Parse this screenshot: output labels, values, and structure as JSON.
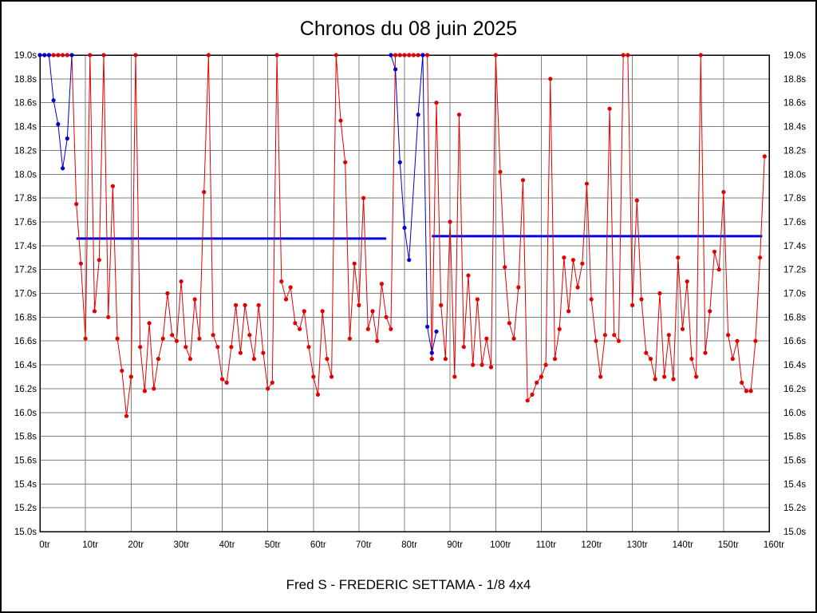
{
  "chart_data": {
    "type": "line",
    "title": "Chronos du 08 juin 2025",
    "subtitle": "Fred S - FREDERIC SETTAMA - 1/8 4x4",
    "x_unit": "tr",
    "y_unit": "s",
    "xlim": [
      0,
      160
    ],
    "ylim": [
      15.0,
      19.0
    ],
    "x_tick_step": 10,
    "y_tick_step": 0.2,
    "grid": true,
    "legend": "none",
    "colors": {
      "grid": "#808080",
      "axis": "#000000",
      "red_series": "#e10000",
      "blue_series": "#0000cd",
      "average_line": "#0000e0",
      "background": "#ffffff"
    },
    "series": [
      {
        "name": "lap-times-red",
        "color": "#e10000",
        "values": [
          19.0,
          19.0,
          19.0,
          19.0,
          19.0,
          19.0,
          19.0,
          19.0,
          17.75,
          17.25,
          16.62,
          19.0,
          16.85,
          17.28,
          19.0,
          16.8,
          17.9,
          16.62,
          16.35,
          15.97,
          16.3,
          19.0,
          16.55,
          16.18,
          16.75,
          16.2,
          16.45,
          16.62,
          17.0,
          16.65,
          16.6,
          17.1,
          16.55,
          16.45,
          16.95,
          16.62,
          17.85,
          19.0,
          16.65,
          16.55,
          16.28,
          16.25,
          16.55,
          16.9,
          16.5,
          16.9,
          16.65,
          16.45,
          16.9,
          16.5,
          16.2,
          16.25,
          19.0,
          17.1,
          16.95,
          17.05,
          16.75,
          16.7,
          16.85,
          16.55,
          16.3,
          16.15,
          16.85,
          16.45,
          16.3,
          19.0,
          18.45,
          18.1,
          16.62,
          17.25,
          16.9,
          17.8,
          16.7,
          16.85,
          16.6,
          17.08,
          16.8,
          16.7,
          19.0,
          19.0,
          19.0,
          19.0,
          19.0,
          19.0,
          19.0,
          19.0,
          16.45,
          18.6,
          16.9,
          16.45,
          17.6,
          16.3,
          18.5,
          16.55,
          17.15,
          16.4,
          16.95,
          16.4,
          16.62,
          16.38,
          19.0,
          18.02,
          17.22,
          16.75,
          16.62,
          17.05,
          17.95,
          16.1,
          16.15,
          16.25,
          16.3,
          16.4,
          18.8,
          16.45,
          16.7,
          17.3,
          16.85,
          17.28,
          17.05,
          17.25,
          17.92,
          16.95,
          16.6,
          16.3,
          16.65,
          18.55,
          16.65,
          16.6,
          19.0,
          19.0,
          16.9,
          17.78,
          16.95,
          16.5,
          16.45,
          16.28,
          17.0,
          16.3,
          16.65,
          16.28,
          17.3,
          16.7,
          17.1,
          16.45,
          16.3,
          19.0,
          16.5,
          16.85,
          17.35,
          17.2,
          17.85,
          16.65,
          16.45,
          16.6,
          16.25,
          16.18,
          16.18,
          16.6,
          17.3,
          18.15
        ]
      },
      {
        "name": "warmup-blue",
        "color": "#0000cd",
        "x": [
          0,
          1,
          2,
          3,
          4,
          5,
          6,
          7
        ],
        "values": [
          19.0,
          19.0,
          19.0,
          18.62,
          18.42,
          18.05,
          18.3,
          19.0
        ]
      },
      {
        "name": "mid-race-blue",
        "color": "#0000cd",
        "x": [
          77,
          78,
          79,
          80,
          81,
          83,
          84,
          85,
          86,
          87
        ],
        "values": [
          19.0,
          18.88,
          18.1,
          17.55,
          17.28,
          18.5,
          19.0,
          16.72,
          16.5,
          16.68
        ]
      }
    ],
    "reference_lines": [
      {
        "name": "average-line-first-stint",
        "value": 17.46,
        "from": 8,
        "to": 76,
        "color": "#0000e0"
      },
      {
        "name": "average-line-second-stint",
        "value": 17.48,
        "from": 86,
        "to": 158.5,
        "color": "#0000e0"
      }
    ]
  }
}
